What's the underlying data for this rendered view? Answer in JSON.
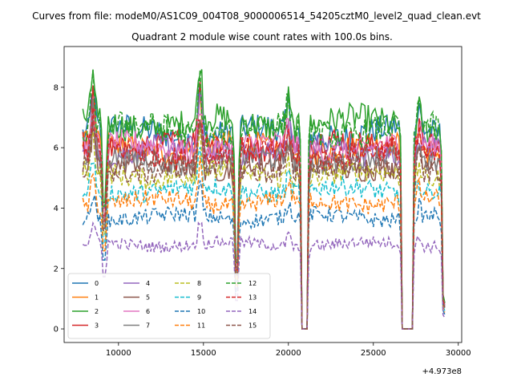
{
  "figure": {
    "suptitle": "Curves from file: modeM0/AS1C09_004T08_9000006514_54205cztM0_level2_quad_clean.evt",
    "offset_label": "+4.973e8"
  },
  "chart_data": {
    "type": "line",
    "title": "Quadrant 2 module wise count rates with 100.0s bins.",
    "xlabel": "",
    "ylabel": "",
    "xlim": [
      6800,
      30200
    ],
    "ylim": [
      -0.45,
      9.35
    ],
    "x_offset": 497300000,
    "x_ticks": [
      10000,
      15000,
      20000,
      25000,
      30000
    ],
    "y_ticks": [
      0,
      2,
      4,
      6,
      8
    ],
    "x_tick_labels": [
      "10000",
      "15000",
      "20000",
      "25000",
      "30000"
    ],
    "y_tick_labels": [
      "0",
      "2",
      "4",
      "6",
      "8"
    ],
    "grid": false,
    "legend": {
      "placement": "lower-left",
      "columns": 4
    },
    "x_start": 7900,
    "x_end": 29200,
    "bin": 100,
    "series": [
      {
        "name": "0",
        "color": "#1f77b4",
        "dash": "solid",
        "level": 6.5
      },
      {
        "name": "1",
        "color": "#ff7f0e",
        "dash": "solid",
        "level": 6.0
      },
      {
        "name": "2",
        "color": "#2ca02c",
        "dash": "solid",
        "level": 6.8
      },
      {
        "name": "3",
        "color": "#d62728",
        "dash": "solid",
        "level": 6.1
      },
      {
        "name": "4",
        "color": "#9467bd",
        "dash": "solid",
        "level": 5.9
      },
      {
        "name": "5",
        "color": "#8c564b",
        "dash": "solid",
        "level": 5.4
      },
      {
        "name": "6",
        "color": "#e377c2",
        "dash": "solid",
        "level": 6.0
      },
      {
        "name": "7",
        "color": "#7f7f7f",
        "dash": "solid",
        "level": 5.6
      },
      {
        "name": "8",
        "color": "#bcbd22",
        "dash": "dashed",
        "level": 5.1
      },
      {
        "name": "9",
        "color": "#17becf",
        "dash": "dashed",
        "level": 4.6
      },
      {
        "name": "10",
        "color": "#1f77b4",
        "dash": "dashed",
        "level": 3.7
      },
      {
        "name": "11",
        "color": "#ff7f0e",
        "dash": "dashed",
        "level": 4.2
      },
      {
        "name": "12",
        "color": "#2ca02c",
        "dash": "dashed",
        "level": 6.6
      },
      {
        "name": "13",
        "color": "#d62728",
        "dash": "dashed",
        "level": 5.8
      },
      {
        "name": "14",
        "color": "#9467bd",
        "dash": "dashed",
        "level": 2.8
      },
      {
        "name": "15",
        "color": "#8c564b",
        "dash": "dashed",
        "level": 5.3
      }
    ],
    "dips": [
      {
        "x": [
          9100,
          9250
        ],
        "depth": 0.55
      },
      {
        "x": [
          16850,
          17050
        ],
        "depth": 0.3
      },
      {
        "x": [
          20800,
          21100
        ],
        "depth": 0.0
      },
      {
        "x": [
          26700,
          27300
        ],
        "depth": 0.0
      },
      {
        "x": [
          29100,
          29200
        ],
        "depth": 0.15
      }
    ],
    "peaks": [
      {
        "x": 8500,
        "boost": 1.25
      },
      {
        "x": 14800,
        "boost": 1.3
      },
      {
        "x": 20000,
        "boost": 1.15
      },
      {
        "x": 27700,
        "boost": 1.1
      }
    ]
  }
}
